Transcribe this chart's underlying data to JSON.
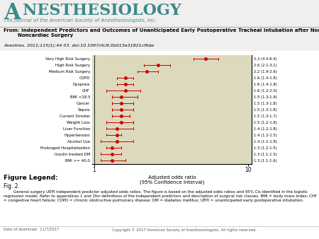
{
  "categories": [
    "Very High Risk Surgery",
    "High Risk Surgery",
    "Medium Risk Surgery",
    "COPD",
    "Dyspnea",
    "CHF",
    "BMI <18.5",
    "Cancer",
    "Sepsis",
    "Current Smoker",
    "Weight Loss",
    "Liver Function",
    "Hypertension",
    "Alcohol Use",
    "Prolonged Hospitalization",
    "Insulin treated DM",
    "BMI >= 40.0"
  ],
  "or": [
    5.3,
    2.6,
    2.2,
    1.6,
    1.6,
    1.6,
    1.5,
    1.5,
    1.5,
    1.5,
    1.5,
    1.4,
    1.4,
    1.4,
    1.3,
    1.3,
    1.3
  ],
  "ci_low": [
    4.4,
    2.1,
    1.9,
    1.4,
    1.4,
    1.2,
    1.3,
    1.3,
    1.3,
    1.3,
    1.2,
    1.2,
    1.2,
    1.1,
    1.2,
    1.1,
    1.1
  ],
  "ci_high": [
    6.4,
    3.1,
    2.6,
    1.8,
    1.8,
    2.0,
    1.9,
    1.8,
    1.8,
    1.7,
    1.8,
    1.8,
    1.5,
    1.8,
    1.5,
    1.5,
    1.6
  ],
  "labels_right": [
    "5.3 (4.4-6.4)",
    "2.6 (2.1-3.1)",
    "2.2 (1.9-2.6)",
    "1.6 (1.4-1.8)",
    "1.6 (1.4-1.8)",
    "1.6 (1.2-2.0)",
    "1.5 (1.3-1.9)",
    "1.5 (1.3-1.8)",
    "1.5 (1.3-1.8)",
    "1.5 (1.3-1.7)",
    "1.5 (1.2-1.8)",
    "1.4 (1.2-1.8)",
    "1.4 (1.2-1.5)",
    "1.4 (1.1-1.8)",
    "1.3 (1.2-1.5)",
    "1.3 (1.1-1.5)",
    "1.3 (1.1-1.6)"
  ],
  "marker_color": "#cc0000",
  "plot_bg": "#ddd9bc",
  "xlabel_line1": "Adjusted odds ratio",
  "xlabel_line2": "(95% Confidence Interval)",
  "teal_color": "#3a8a8a",
  "teal_dark": "#2a6a6a",
  "journal_big_A": "A",
  "journal_rest": "NESTHESIOLOGY",
  "journal_subtitle": "The Journal of the American Society of Anesthesiologists, Inc.",
  "title_bold": "From: Independent Predictors and Outcomes of Unanticipated Early Postoperative Tracheal Intubation after Nonemergent,\n        Noncardiac Surgery",
  "doi_text": "Anesthes. 2011;115(1):44-53. doi:10.1097/ALN.0b013e31821cf6de",
  "legend_title": "Figure Legend:",
  "legend_fig": "Fig. 2.",
  "legend_body": "        General surgery UEPI independent predictor adjusted odds ratios. The figure is based on the adjusted odds ratios and 95% CIs identified in the logistic regression model. Refer to appendices 1 and 2for definitions of the independent predictors and description of surgical risk classes. BMI = body mass index; CHF = congestive heart failure; COPD = chronic obstructive pulmonary disease; DM = diabetes mellitus; UEPI = unanticipated early postoperative intubation.",
  "footer_left": "Date of download:  11/7/2017",
  "footer_right": "Copyright © 2017 American Society of Anesthesiologists. All rights reserved.",
  "gray_bg": "#e8e8e8",
  "light_gray_bg": "#f0efed"
}
